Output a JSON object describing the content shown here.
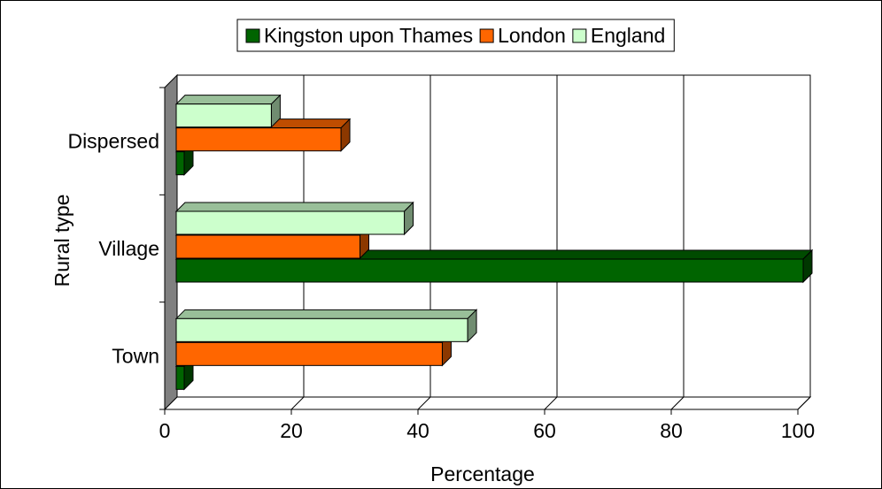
{
  "chart_data": {
    "type": "bar",
    "orientation": "horizontal",
    "style": "3d",
    "categories": [
      "Town",
      "Village",
      "Dispersed"
    ],
    "series": [
      {
        "name": "Kingston upon Thames",
        "values": [
          0,
          100,
          0
        ],
        "color": "#006400"
      },
      {
        "name": "London",
        "values": [
          43,
          30,
          27
        ],
        "color": "#ff6600"
      },
      {
        "name": "England",
        "values": [
          47,
          37,
          16
        ],
        "color": "#ccffcc"
      }
    ],
    "title": "",
    "xlabel": "Percentage",
    "ylabel": "Rural type",
    "xlim": [
      0,
      100
    ],
    "xticks": [
      "0",
      "20",
      "40",
      "60",
      "80",
      "100"
    ],
    "grid": true,
    "legend_position": "top"
  }
}
